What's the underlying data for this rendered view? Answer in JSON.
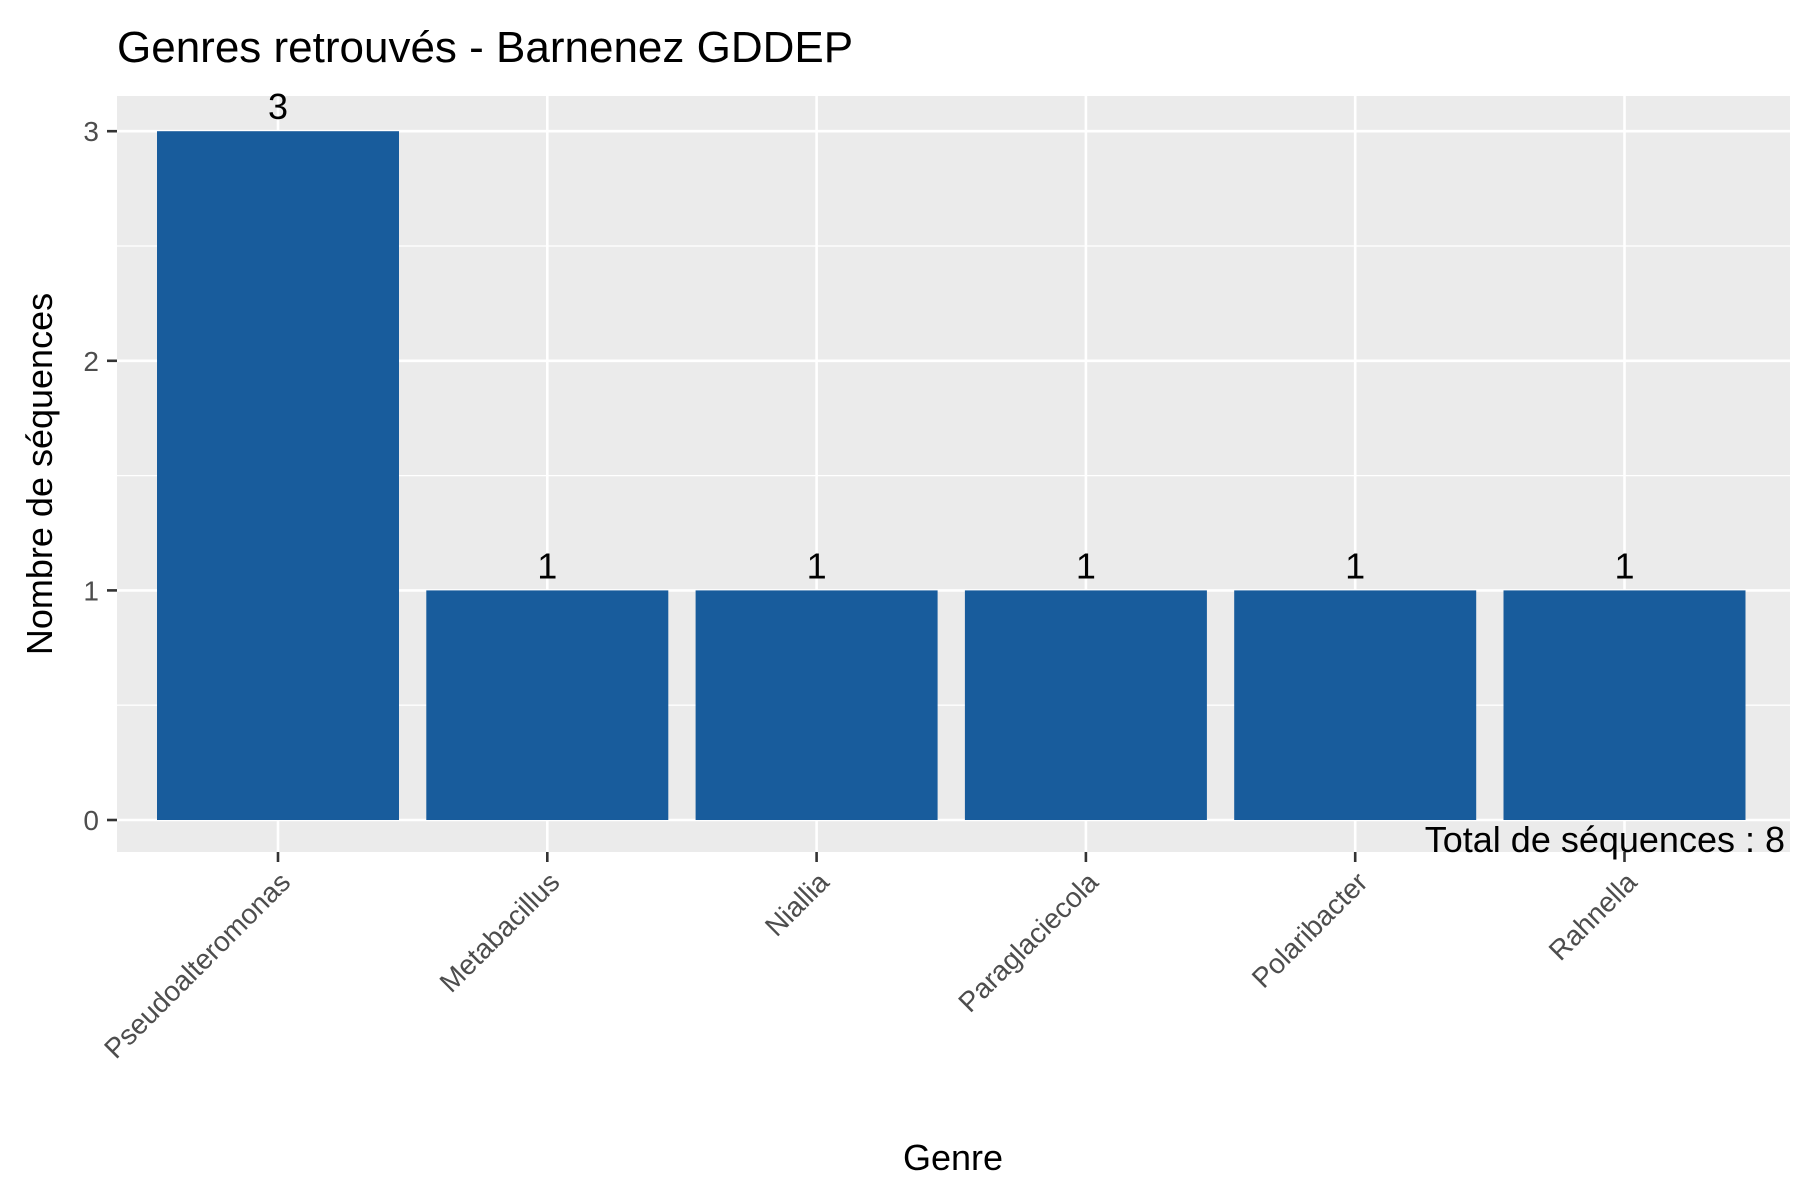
{
  "chart_data": {
    "type": "bar",
    "title": "Genres retrouvés - Barnenez GDDEP",
    "xlabel": "Genre",
    "ylabel": "Nombre de séquences",
    "categories": [
      "Pseudoalteromonas",
      "Metabacillus",
      "Niallia",
      "Paraglaciecola",
      "Polaribacter",
      "Rahnella"
    ],
    "values": [
      3,
      1,
      1,
      1,
      1,
      1
    ],
    "data_labels": [
      "3",
      "1",
      "1",
      "1",
      "1",
      "1"
    ],
    "ylim": [
      0,
      3.15
    ],
    "yticks": [
      0,
      1,
      2,
      3
    ],
    "ytick_labels": [
      "0",
      "1",
      "2",
      "3"
    ],
    "grid": true,
    "legend": "none",
    "annotation": "Total de séquences : 8",
    "colors": {
      "bar": "#185C9C",
      "panel": "#EBEBEB",
      "grid": "#FFFFFF"
    }
  }
}
